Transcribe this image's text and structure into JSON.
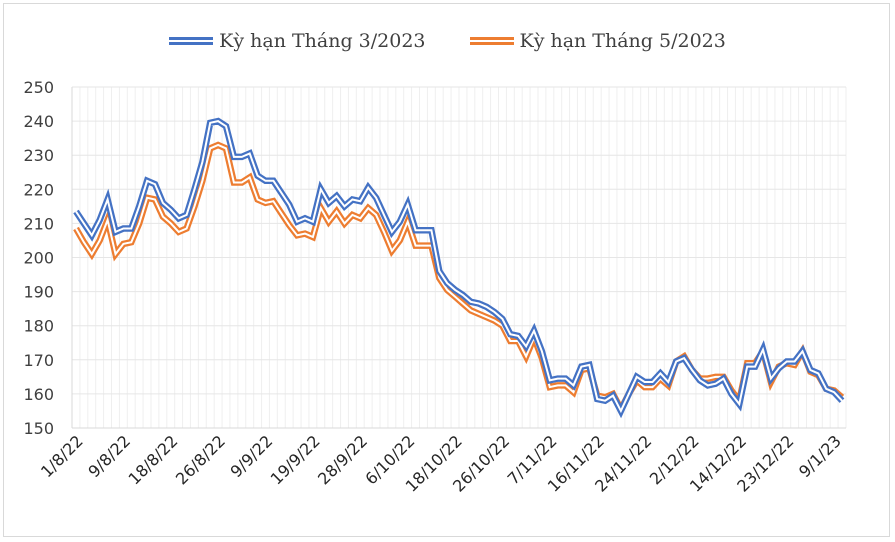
{
  "chart_data": {
    "type": "line",
    "title": "",
    "xlabel": "",
    "ylabel": "",
    "ylim": [
      150,
      250
    ],
    "yticks": [
      150,
      160,
      170,
      180,
      190,
      200,
      210,
      220,
      230,
      240,
      250
    ],
    "grid": {
      "horizontal": true,
      "vertical": true
    },
    "legend_position": "top",
    "x_tick_labels": [
      "1/8/22",
      "9/8/22",
      "18/8/22",
      "26/8/22",
      "9/9/22",
      "19/9/22",
      "28/9/22",
      "6/10/22",
      "18/10/22",
      "26/10/22",
      "7/11/22",
      "16/11/22",
      "24/11/22",
      "2/12/22",
      "14/12/22",
      "23/12/22",
      "9/1/23"
    ],
    "x_tick_index": [
      0,
      6,
      12,
      18,
      24,
      30,
      36,
      42,
      48,
      54,
      60,
      66,
      72,
      78,
      84,
      90,
      96
    ],
    "series": [
      {
        "name": "Kỳ hạn Tháng 3/2023",
        "color": "#4472c4",
        "values": [
          213.5,
          210,
          206.5,
          211,
          217,
          207.5,
          208.5,
          208.5,
          215,
          222.5,
          221.5,
          216,
          214,
          211.5,
          212.5,
          220,
          228,
          239.5,
          240,
          238.5,
          229.5,
          229.5,
          230.5,
          224,
          222.5,
          222.5,
          219,
          215.5,
          210.5,
          211.5,
          210.5,
          220,
          216,
          218,
          215,
          217,
          216.5,
          220.5,
          217.5,
          212.5,
          207.5,
          210.5,
          215.5,
          208,
          208,
          208,
          196,
          192.5,
          190.5,
          189,
          187,
          186.5,
          185.5,
          184,
          182,
          177.5,
          177,
          174,
          178.5,
          172.5,
          164,
          164.5,
          164.5,
          162.5,
          168,
          168.5,
          158.5,
          158,
          159.5,
          155,
          160,
          165,
          163.5,
          163.5,
          166,
          163.5,
          169.5,
          170.5,
          167,
          164,
          162.5,
          163,
          164.5,
          160,
          157,
          168,
          168,
          173,
          164.5,
          167.5,
          169.5,
          169.5,
          172.5,
          167,
          166,
          161.5,
          160.5,
          158
        ]
      },
      {
        "name": "Kỳ hạn Tháng 5/2023",
        "color": "#ed7d31",
        "values": [
          208.5,
          204.5,
          201,
          205,
          211,
          201,
          204,
          204.5,
          210,
          217.5,
          217,
          212,
          210,
          207.5,
          208.5,
          215,
          222.5,
          232,
          233,
          232,
          222,
          222,
          223.5,
          217,
          216,
          216.5,
          213,
          209.5,
          206.5,
          207,
          206,
          214.5,
          210.5,
          213.5,
          210,
          212.5,
          211.5,
          214.5,
          212.5,
          207.5,
          202,
          205,
          210.5,
          203.5,
          203.5,
          203.5,
          194,
          190.5,
          188.5,
          186.5,
          184.5,
          183.5,
          182.5,
          181.5,
          180,
          175.5,
          175.5,
          171,
          176.5,
          170.5,
          162,
          162.5,
          162.5,
          160.5,
          167,
          167.5,
          159.5,
          159,
          160,
          155.5,
          160,
          164,
          162,
          162,
          164.5,
          162.5,
          169.5,
          171,
          167,
          164.5,
          164.5,
          165,
          165,
          161,
          158,
          169,
          169,
          172.5,
          163.5,
          168,
          169,
          168.5,
          172.5,
          166.5,
          165.5,
          161.5,
          161,
          159
        ]
      }
    ]
  },
  "legend": {
    "items": [
      {
        "label": "Kỳ hạn Tháng 3/2023",
        "color": "#4472c4"
      },
      {
        "label": "Kỳ hạn Tháng 5/2023",
        "color": "#ed7d31"
      }
    ]
  }
}
